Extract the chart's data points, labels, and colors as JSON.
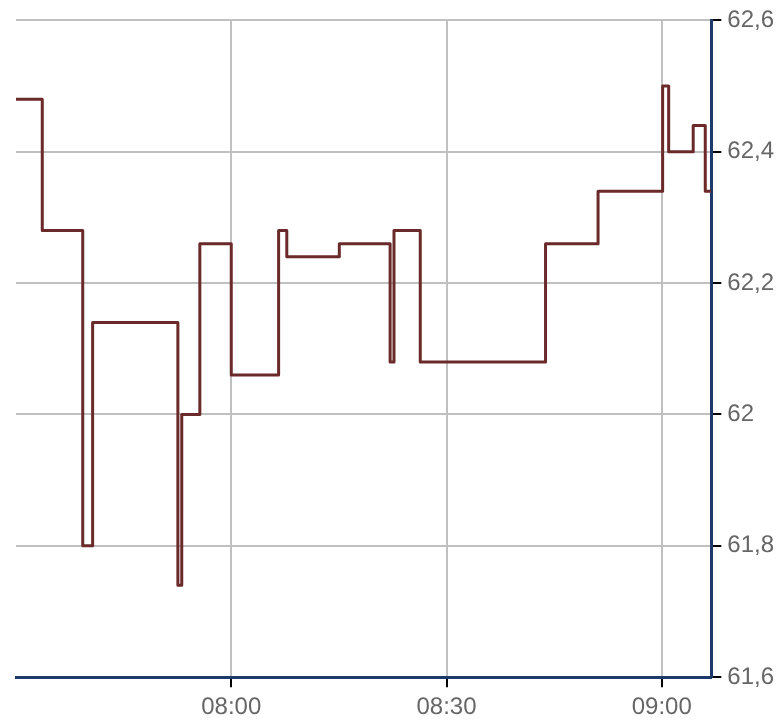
{
  "chart_data": {
    "type": "step",
    "x": [
      7.5,
      7.561,
      7.655,
      7.678,
      7.876,
      7.885,
      7.927,
      8.0,
      8.11,
      8.129,
      8.251,
      8.369,
      8.378,
      8.439,
      8.73,
      8.852,
      9.002,
      9.016,
      9.073,
      9.101,
      9.115
    ],
    "series": [
      {
        "color": "#6b2a2a",
        "values": [
          62.48,
          62.28,
          61.8,
          62.14,
          61.74,
          62.0,
          62.26,
          62.06,
          62.28,
          62.24,
          62.26,
          62.08,
          62.28,
          62.08,
          62.26,
          62.34,
          62.5,
          62.4,
          62.44,
          62.34,
          62.34
        ]
      }
    ],
    "xlim": [
      7.5,
      9.115
    ],
    "xticks": [
      {
        "value": 8,
        "label": "08:00"
      },
      {
        "value": 8.5,
        "label": "08:30"
      },
      {
        "value": 9,
        "label": "09:00"
      }
    ],
    "ylim": [
      61.6,
      62.6
    ],
    "yticks": [
      {
        "value": 61.6,
        "label": "61,6"
      },
      {
        "value": 61.8,
        "label": "61,8"
      },
      {
        "value": 62,
        "label": "62"
      },
      {
        "value": 62.2,
        "label": "62,2"
      },
      {
        "value": 62.4,
        "label": "62,4"
      },
      {
        "value": 62.6,
        "label": "62,6"
      }
    ],
    "grid": true,
    "legend": false
  }
}
